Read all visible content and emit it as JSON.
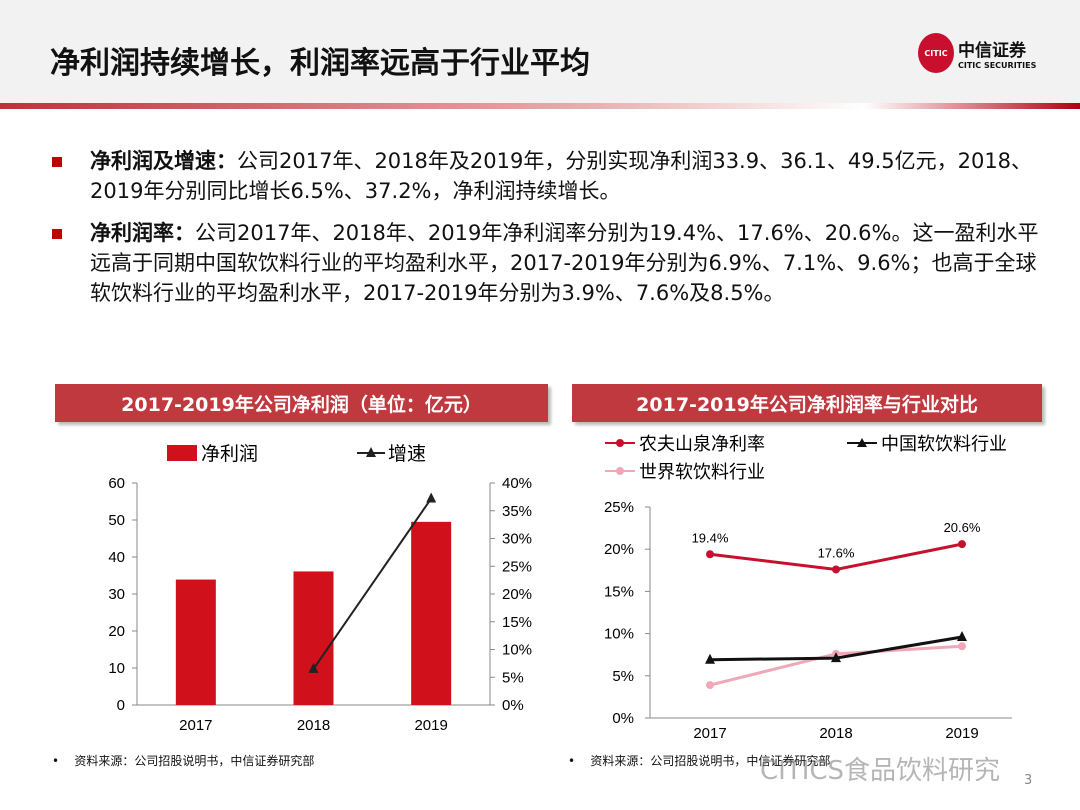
{
  "header": {
    "title": "净利润持续增长，利润率远高于行业平均",
    "logo_cn": "中信证券",
    "logo_en": "CITIC SECURITIES"
  },
  "bullets": [
    {
      "label": "净利润及增速：",
      "text": "公司2017年、2018年及2019年，分别实现净利润33.9、36.1、49.5亿元，2018、2019年分别同比增长6.5%、37.2%，净利润持续增长。"
    },
    {
      "label": "净利润率：",
      "text": "公司2017年、2018年、2019年净利润率分别为19.4%、17.6%、20.6%。这一盈利水平远高于同期中国软饮料行业的平均盈利水平，2017-2019年分别为6.9%、7.1%、9.6%；也高于全球软饮料行业的平均盈利水平，2017-2019年分别为3.9%、7.6%及8.5%。"
    }
  ],
  "footer": {
    "source_left": "资料来源：公司招股说明书，中信证券研究部",
    "source_right": "资料来源：公司招股说明书，中信证券研究部",
    "watermark": "CITICS食品饮料研究",
    "page": "3"
  },
  "colors": {
    "accent": "#c00000",
    "bar": "#d0101a",
    "growth": "#222222",
    "company": "#c8102e",
    "china": "#111111",
    "global": "#f0a8b8"
  },
  "chart_data": [
    {
      "type": "bar",
      "title": "2017-2019年公司净利润（单位：亿元）",
      "categories": [
        "2017",
        "2018",
        "2019"
      ],
      "series": [
        {
          "name": "净利润",
          "type": "bar",
          "axis": "left",
          "values": [
            33.9,
            36.1,
            49.5
          ]
        },
        {
          "name": "增速",
          "type": "line",
          "axis": "right",
          "values": [
            null,
            6.5,
            37.2
          ]
        }
      ],
      "ylim": [
        0,
        60
      ],
      "yticks": [
        "0",
        "10",
        "20",
        "30",
        "40",
        "50",
        "60"
      ],
      "y2lim": [
        0,
        40
      ],
      "y2ticks": [
        "0%",
        "5%",
        "10%",
        "15%",
        "20%",
        "25%",
        "30%",
        "35%",
        "40%"
      ],
      "legend": "top",
      "grid": false
    },
    {
      "type": "line",
      "title": "2017-2019年公司净利润率与行业对比",
      "categories": [
        "2017",
        "2018",
        "2019"
      ],
      "series": [
        {
          "name": "农夫山泉净利率",
          "values": [
            19.4,
            17.6,
            20.6
          ],
          "labels": [
            "19.4%",
            "17.6%",
            "20.6%"
          ]
        },
        {
          "name": "中国软饮料行业",
          "values": [
            6.9,
            7.1,
            9.6
          ]
        },
        {
          "name": "世界软饮料行业",
          "values": [
            3.9,
            7.6,
            8.5
          ]
        }
      ],
      "ylim": [
        0,
        25
      ],
      "yticks": [
        "0%",
        "5%",
        "10%",
        "15%",
        "20%",
        "25%"
      ],
      "legend": "top",
      "grid": false
    }
  ]
}
